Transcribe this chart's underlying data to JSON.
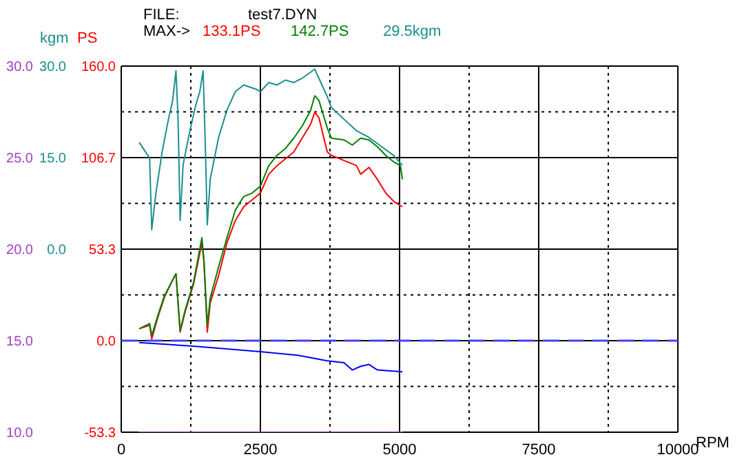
{
  "chart_data": {
    "type": "line",
    "ylabel": "PS",
    "y2label": "kgm",
    "xlabel": "RPM",
    "annotations": [
      "FILE:",
      "test7.DYN",
      "MAX->",
      "133.1PS",
      "142.7PS",
      "29.5kgm"
    ],
    "xlim": [
      0,
      10000
    ],
    "xticks": [
      0,
      2500,
      5000,
      7500,
      10000
    ],
    "ylim": [
      -53.3,
      160
    ],
    "yticks": [
      {
        "value": 160,
        "label": "160.0"
      },
      106.7,
      53.3,
      {
        "value": 0,
        "label": "0.0"
      },
      -53.3
    ],
    "y2lim": [
      -30,
      30
    ],
    "y2ticks": [
      {
        "value": 30,
        "label": "30.0"
      },
      {
        "value": 15,
        "label": "15.0"
      },
      {
        "value": 0,
        "label": "0.0"
      }
    ],
    "y3lim": [
      10,
      30
    ],
    "y3ticks": [
      {
        "value": 30,
        "label": "30.0"
      },
      {
        "value": 25,
        "label": "25.0"
      },
      {
        "value": 20,
        "label": "20.0"
      },
      {
        "value": 15,
        "label": "15.0"
      },
      {
        "value": 10,
        "label": "10.0"
      }
    ],
    "grid": true,
    "ref_lines": [
      {
        "axis": "y3",
        "value": 15,
        "color": "#4040ff",
        "line_style": "dashed"
      }
    ],
    "series": [
      {
        "color": "#ff0000",
        "axis": "y",
        "x": [
          323,
          510,
          548,
          661,
          773,
          886,
          983,
          1021,
          1058,
          1149,
          1299,
          1449,
          1486,
          1546,
          1599,
          1749,
          1899,
          2049,
          2200,
          2350,
          2500,
          2650,
          2800,
          2950,
          3100,
          3250,
          3401,
          3476,
          3551,
          3701,
          3776,
          4001,
          4226,
          4301,
          4451,
          4602,
          4752,
          4902,
          5052
        ],
        "values": [
          7,
          9,
          1,
          14,
          25,
          33,
          39,
          22,
          5,
          17,
          33,
          57,
          46,
          5,
          22,
          38,
          57,
          70,
          78,
          82,
          86,
          97,
          102,
          106,
          110,
          118,
          126,
          133.1,
          130,
          110,
          108,
          105,
          102,
          97,
          101,
          94,
          86,
          81,
          78
        ]
      },
      {
        "color": "#008000",
        "axis": "y",
        "x": [
          323,
          510,
          548,
          661,
          773,
          886,
          983,
          1021,
          1058,
          1149,
          1299,
          1449,
          1486,
          1546,
          1599,
          1749,
          1899,
          2049,
          2200,
          2350,
          2500,
          2650,
          2800,
          2950,
          3100,
          3250,
          3401,
          3476,
          3551,
          3701,
          3776,
          4001,
          4151,
          4301,
          4451,
          4602,
          4752,
          4902,
          5014,
          5052
        ],
        "values": [
          7,
          10,
          3,
          15,
          26,
          33,
          39,
          22,
          6,
          18,
          34,
          60,
          47,
          9,
          25,
          43,
          60,
          76,
          84,
          86,
          90,
          102,
          108,
          112,
          118,
          125,
          134,
          142.7,
          140,
          124,
          118,
          117,
          114,
          118,
          117,
          113,
          108,
          104,
          102,
          94
        ]
      },
      {
        "color": "#169090",
        "axis": "y2",
        "x": [
          323,
          510,
          548,
          623,
          736,
          848,
          923,
          983,
          1021,
          1058,
          1111,
          1224,
          1336,
          1411,
          1471,
          1509,
          1546,
          1599,
          1749,
          1899,
          2049,
          2200,
          2425,
          2500,
          2650,
          2800,
          2950,
          3100,
          3250,
          3476,
          3551,
          3701,
          3776,
          4001,
          4226,
          4451,
          4677,
          4902,
          5014,
          5052
        ],
        "values": [
          17.5,
          14.9,
          3.2,
          9.2,
          16,
          21.3,
          24.3,
          29.2,
          21.3,
          4.7,
          13.8,
          19,
          23.5,
          25.8,
          29.2,
          17.5,
          4,
          11.5,
          18.3,
          22.8,
          25.8,
          26.9,
          26.2,
          25.8,
          27.3,
          26.9,
          27.7,
          27.3,
          28,
          29.5,
          28,
          25,
          23.2,
          21.3,
          19.4,
          18.3,
          16.8,
          15.3,
          14.1,
          13.8
        ]
      },
      {
        "color": "#a040c0",
        "axis": "y3",
        "x": [
          315,
          5052
        ],
        "values": [
          10,
          10
        ]
      },
      {
        "color": "#0000ff",
        "axis": "y3",
        "x": [
          323,
          1299,
          2500,
          3175,
          3701,
          4001,
          4151,
          4301,
          4451,
          4602,
          5052
        ],
        "values": [
          14.9,
          14.7,
          14.4,
          14.2,
          13.9,
          13.8,
          13.4,
          13.6,
          13.7,
          13.4,
          13.3
        ]
      }
    ]
  }
}
